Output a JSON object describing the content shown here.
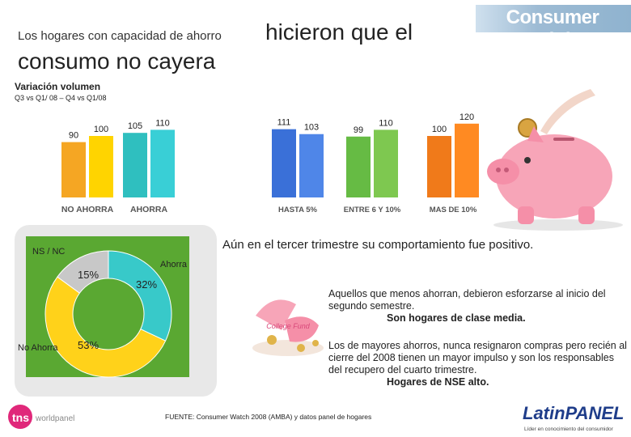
{
  "title": {
    "lead": "Los hogares con capacidad de ahorro",
    "main_1": "hicieron que el",
    "main_2": "consumo no cayera"
  },
  "brand": {
    "consumer_insight": "Consumer Insight",
    "tns": "tns",
    "tns_sub": "worldpanel",
    "latinpanel": "LatinPANEL",
    "latinpanel_tag": "Líder en conocimiento del consumidor"
  },
  "volume": {
    "label": "Variación volumen",
    "sub": "Q3 vs Q1/ 08 – Q4 vs Q1/08"
  },
  "chart_data": [
    {
      "type": "bar",
      "title": "Variación volumen",
      "categories": [
        "NO AHORRA",
        "AHORRA",
        "HASTA 5%",
        "ENTRE 6 Y 10%",
        "MAS DE 10%"
      ],
      "series": [
        {
          "name": "Q3 vs Q1/08",
          "values": [
            90,
            105,
            111,
            99,
            100
          ]
        },
        {
          "name": "Q4 vs Q1/08",
          "values": [
            100,
            110,
            103,
            110,
            120
          ]
        }
      ],
      "value_labels": [
        [
          "90",
          "100"
        ],
        [
          "105",
          "110"
        ],
        [
          "111",
          "103"
        ],
        [
          "99",
          "110"
        ],
        [
          "100",
          "120"
        ]
      ],
      "colors": [
        [
          "#f5a623",
          "#ffd400"
        ],
        [
          "#2fbfbf",
          "#39cfd6"
        ],
        [
          "#3a70d8",
          "#4f86e8"
        ],
        [
          "#66bb44",
          "#7ec850"
        ],
        [
          "#f07a1a",
          "#ff8a22"
        ]
      ]
    },
    {
      "type": "pie",
      "title": "",
      "slices": [
        {
          "label": "Ahorra",
          "value": 32,
          "text": "32%",
          "color": "#38c9c9"
        },
        {
          "label": "No Ahorra",
          "value": 53,
          "text": "53%",
          "color": "#ffd21a"
        },
        {
          "label": "NS / NC",
          "value": 15,
          "text": "15%",
          "color": "#c8c8c8"
        }
      ]
    }
  ],
  "labels": {
    "ns_nc": "NS / NC",
    "ahorra": "Ahorra",
    "no_ahorra": "No Ahorra"
  },
  "note": "Aún en el tercer trimestre su comportamiento fue positivo.",
  "paragraph1": {
    "lead": "Aquellos que menos ahorran",
    "rest": ", debieron esforzarse al inicio del segundo semestre.",
    "conclusion": "Son hogares de clase media."
  },
  "paragraph2": {
    "lead": "Los de mayores ahorros",
    "rest": ", nunca resignaron compras pero recién al cierre del 2008 tienen un mayor impulso y son los responsables del recupero del cuarto trimestre.",
    "conclusion": "Hogares de NSE alto."
  },
  "coin_text": "College Fund",
  "source": "FUENTE: Consumer Watch 2008 (AMBA) y datos panel de hogares"
}
